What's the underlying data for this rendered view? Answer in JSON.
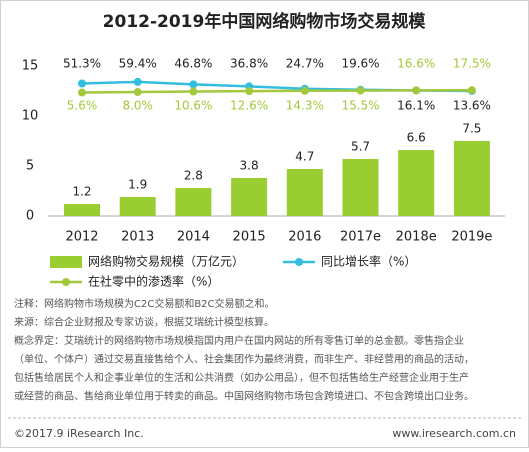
{
  "chart_data": {
    "type": "bar",
    "title": "2012-2019年中国网络购物市场交易规模",
    "categories": [
      "2012",
      "2013",
      "2014",
      "2015",
      "2016",
      "2017e",
      "2018e",
      "2019e"
    ],
    "ylim": [
      0,
      15
    ],
    "yticks": [
      0,
      5,
      10,
      15
    ],
    "y2lim": [
      -620,
      140
    ],
    "series": [
      {
        "name": "网络购物交易规模（万亿元）",
        "type": "bar",
        "color": "#9acd32",
        "values": [
          1.2,
          1.9,
          2.8,
          3.8,
          4.7,
          5.7,
          6.6,
          7.5
        ]
      },
      {
        "name": "同比增长率（%）",
        "type": "line",
        "axis": "y2",
        "color": "#33bde0",
        "values": [
          51.3,
          59.4,
          46.8,
          36.8,
          24.7,
          19.6,
          16.1,
          13.6
        ],
        "value_labels": [
          "51.3%",
          "59.4%",
          "46.8%",
          "36.8%",
          "24.7%",
          "19.6%",
          "16.1%",
          "13.6%"
        ]
      },
      {
        "name": "在社零中的渗透率（%）",
        "type": "line",
        "axis": "y2",
        "color": "#a3c83c",
        "values": [
          5.6,
          8.0,
          10.6,
          12.6,
          14.3,
          15.5,
          16.6,
          17.5
        ],
        "value_labels": [
          "5.6%",
          "8.0%",
          "10.6%",
          "12.6%",
          "14.3%",
          "15.5%",
          "16.6%",
          "17.5%"
        ]
      }
    ]
  },
  "notes": [
    "注释：网络购物市场规模为C2C交易额和B2C交易额之和。",
    "来源：综合企业财报及专家访谈，根据艾瑞统计模型核算。",
    "概念界定：艾瑞统计的网络购物市场规模指国内用户在国内网站的所有零售订单的总金额。零售指企业",
    "（单位、个体户）通过交易直接售给个人、社会集团作为最终消费，而非生产、非经营用的商品的活动，",
    "包括售给居民个人和企事业单位的生活和公共消费（如办公用品），但不包括售给生产经营企业用于生产",
    "或经营的商品、售给商业单位用于转卖的商品。中国网络购物市场包含跨境进口、不包含跨境出口业务。"
  ],
  "footer": {
    "left": "©2017.9 iResearch Inc.",
    "right": "www.iresearch.com.cn"
  }
}
